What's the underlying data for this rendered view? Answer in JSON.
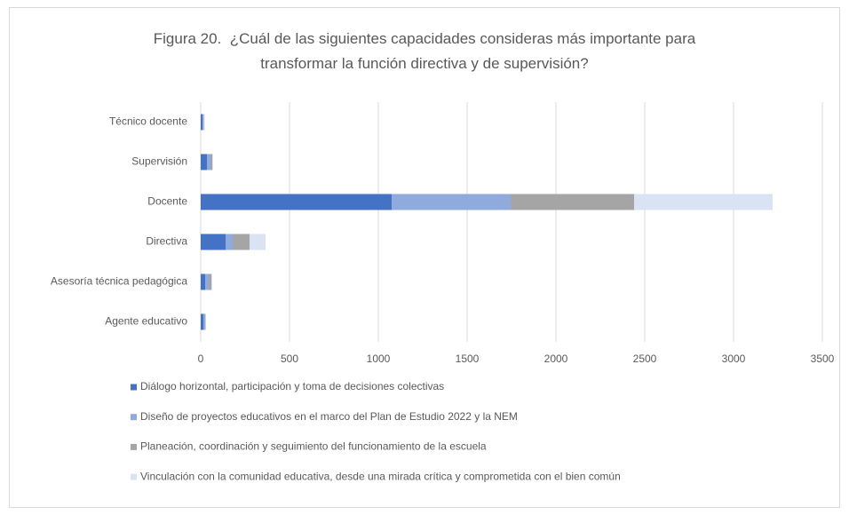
{
  "chart_data": {
    "type": "bar",
    "orientation": "horizontal",
    "stacked": true,
    "title": "Figura 20.  ¿Cuál de las siguientes capacidades consideras más importante para transformar la función directiva y de supervisión?",
    "categories": [
      "Técnico docente",
      "Supervisión",
      "Docente",
      "Directiva",
      "Asesoría técnica pedagógica",
      "Agente educativo"
    ],
    "series": [
      {
        "name": "Diálogo horizontal, participación y toma de decisiones colectivas",
        "color": "#4472c4",
        "values": [
          10,
          35,
          1075,
          140,
          25,
          15
        ]
      },
      {
        "name": "Diseño de proyectos educativos en el marco del Plan de Estudio 2022 y la NEM",
        "color": "#8faadc",
        "values": [
          5,
          20,
          670,
          40,
          20,
          10
        ]
      },
      {
        "name": "Planeación, coordinación y seguimiento del funcionamiento de la escuela",
        "color": "#a5a5a5",
        "values": [
          3,
          10,
          695,
          95,
          15,
          2
        ]
      },
      {
        "name": "Vinculación con la comunidad educativa, desde una mirada crítica y comprometida con el bien común",
        "color": "#dae3f3",
        "values": [
          5,
          5,
          780,
          90,
          5,
          3
        ]
      }
    ],
    "xlim": [
      0,
      3500
    ],
    "xticks": [
      0,
      500,
      1000,
      1500,
      2000,
      2500,
      3000,
      3500
    ],
    "grid": true,
    "legend": "bottom"
  }
}
